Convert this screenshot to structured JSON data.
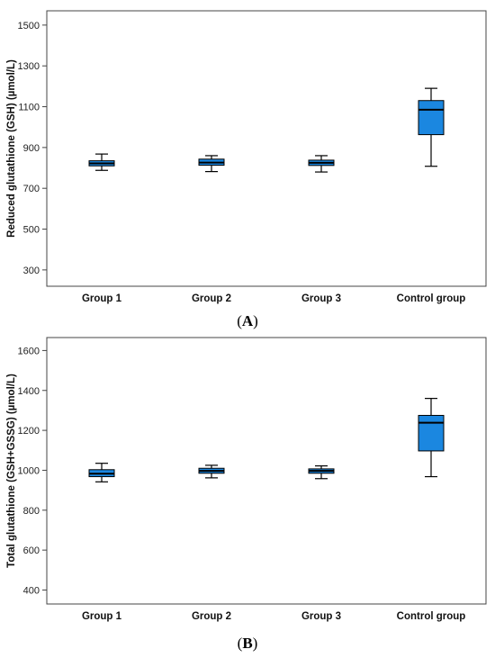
{
  "chart_data": [
    {
      "type": "box",
      "ylabel": "Reduced glutathione (GSH) (µmol/L)",
      "ylim": [
        220,
        1570
      ],
      "yticks": [
        300,
        500,
        700,
        900,
        1100,
        1300,
        1500
      ],
      "categories": [
        "Group 1",
        "Group 2",
        "Group 3",
        "Control group"
      ],
      "boxes": [
        {
          "min": 788,
          "q1": 810,
          "median": 822,
          "q3": 835,
          "max": 868
        },
        {
          "min": 782,
          "q1": 813,
          "median": 826,
          "q3": 843,
          "max": 860
        },
        {
          "min": 780,
          "q1": 812,
          "median": 825,
          "q3": 838,
          "max": 860
        },
        {
          "min": 808,
          "q1": 963,
          "median": 1085,
          "q3": 1130,
          "max": 1190
        }
      ],
      "box_color": "#1b87e0",
      "panel_label": {
        "open": "(",
        "letter": "A",
        "close": ")"
      }
    },
    {
      "type": "box",
      "ylabel": "Total glutathione (GSH+GSSG) (µmol/L)",
      "ylim": [
        330,
        1665
      ],
      "yticks": [
        400,
        600,
        800,
        1000,
        1200,
        1400,
        1600
      ],
      "categories": [
        "Group 1",
        "Group 2",
        "Group 3",
        "Control group"
      ],
      "boxes": [
        {
          "min": 942,
          "q1": 968,
          "median": 983,
          "q3": 1003,
          "max": 1035
        },
        {
          "min": 962,
          "q1": 985,
          "median": 997,
          "q3": 1010,
          "max": 1025
        },
        {
          "min": 958,
          "q1": 985,
          "median": 997,
          "q3": 1007,
          "max": 1022
        },
        {
          "min": 968,
          "q1": 1097,
          "median": 1238,
          "q3": 1275,
          "max": 1360
        }
      ],
      "box_color": "#1b87e0",
      "panel_label": {
        "open": "(",
        "letter": "B",
        "close": ")"
      }
    }
  ]
}
